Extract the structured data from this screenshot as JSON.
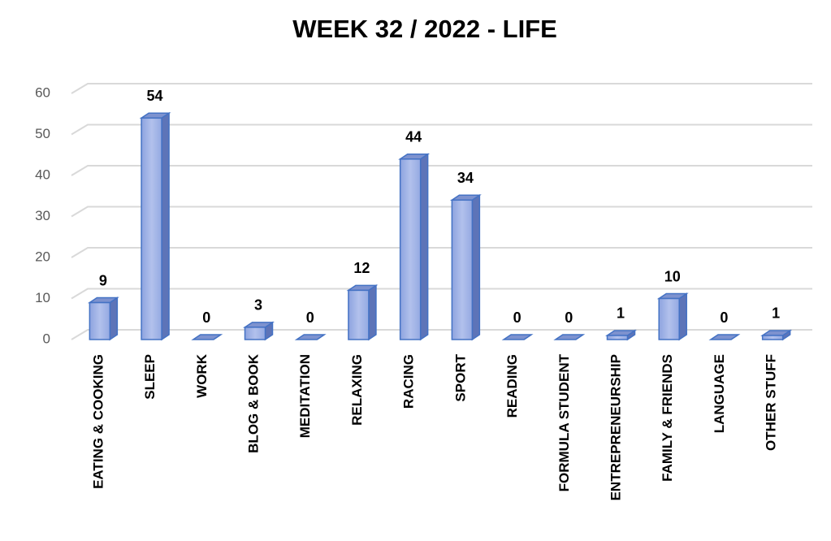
{
  "chart_data": {
    "type": "bar",
    "title": "WEEK 32 / 2022 - LIFE",
    "categories": [
      "EATING & COOKING",
      "SLEEP",
      "WORK",
      "BLOG & BOOK",
      "MEDITATION",
      "RELAXING",
      "RACING",
      "SPORT",
      "READING",
      "FORMULA STUDENT",
      "ENTREPRENEURSHIP",
      "FAMILY & FRIENDS",
      "LANGUAGE",
      "OTHER STUFF"
    ],
    "values": [
      9,
      54,
      0,
      3,
      0,
      12,
      44,
      34,
      0,
      0,
      1,
      10,
      0,
      1
    ],
    "color": "#4472c4",
    "ylim": [
      0,
      60
    ],
    "yticks": [
      0,
      10,
      20,
      30,
      40,
      50,
      60
    ],
    "grid": true
  }
}
